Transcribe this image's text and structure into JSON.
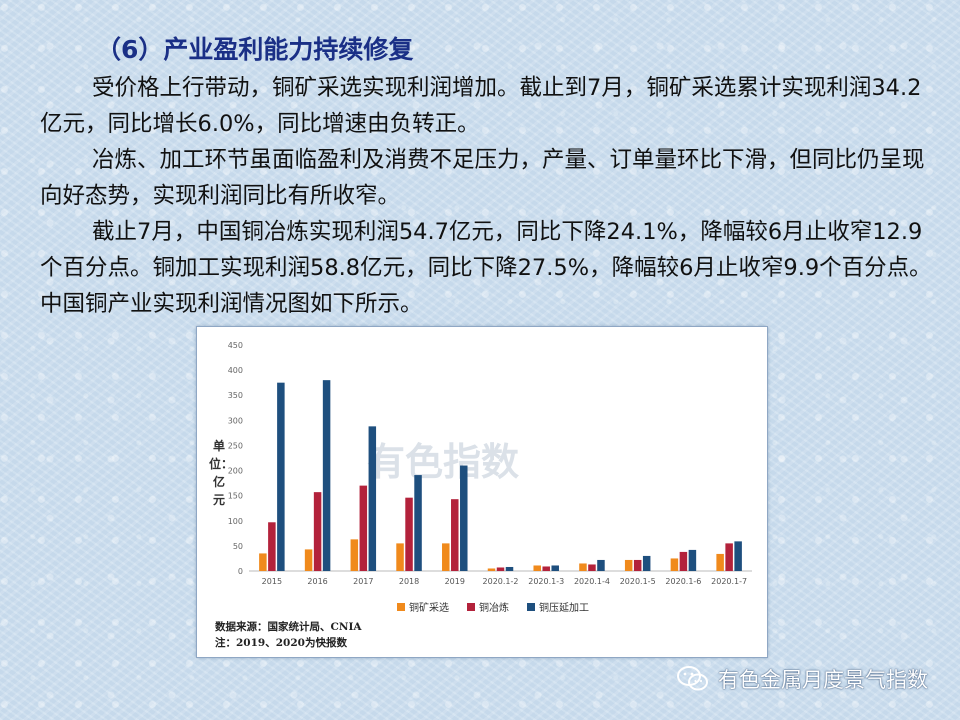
{
  "heading": "（6）产业盈利能力持续修复",
  "paragraphs": [
    "受价格上行带动，铜矿采选实现利润增加。截止到7月，铜矿采选累计实现利润34.2亿元，同比增长6.0%，同比增速由负转正。",
    "冶炼、加工环节虽面临盈利及消费不足压力，产量、订单量环比下滑，但同比仍呈现向好态势，实现利润同比有所收窄。",
    "截止7月，中国铜冶炼实现利润54.7亿元，同比下降24.1%，降幅较6月止收窄12.9个百分点。铜加工实现利润58.8亿元，同比下降27.5%，降幅较6月止收窄9.9个百分点。中国铜产业实现利润情况图如下所示。"
  ],
  "chart_data": {
    "type": "bar",
    "ylabel": "单位：亿元",
    "ylim": [
      0,
      450
    ],
    "yticks": [
      0,
      50,
      100,
      150,
      200,
      250,
      300,
      350,
      400,
      450
    ],
    "categories": [
      "2015",
      "2016",
      "2017",
      "2018",
      "2019",
      "2020.1-2",
      "2020.1-3",
      "2020.1-4",
      "2020.1-5",
      "2020.1-6",
      "2020.1-7"
    ],
    "series": [
      {
        "name": "铜矿采选",
        "color": "#f08a1c",
        "values": [
          35,
          43,
          63,
          55,
          55,
          5,
          11,
          15,
          22,
          25,
          34
        ]
      },
      {
        "name": "铜冶炼",
        "color": "#b3223b",
        "values": [
          97,
          157,
          170,
          146,
          143,
          7,
          9,
          13,
          22,
          38,
          55
        ]
      },
      {
        "name": "铜压延加工",
        "color": "#1e4f7e",
        "values": [
          375,
          380,
          288,
          191,
          210,
          8,
          11,
          22,
          30,
          42,
          59
        ]
      }
    ],
    "grid": false,
    "legend": "bottom",
    "notes": [
      "数据来源：国家统计局、CNIA",
      "注：2019、2020为快报数"
    ],
    "watermark": "有色指数"
  },
  "brand": {
    "icon": "wechat-icon",
    "name": "有色金属月度景气指数"
  }
}
